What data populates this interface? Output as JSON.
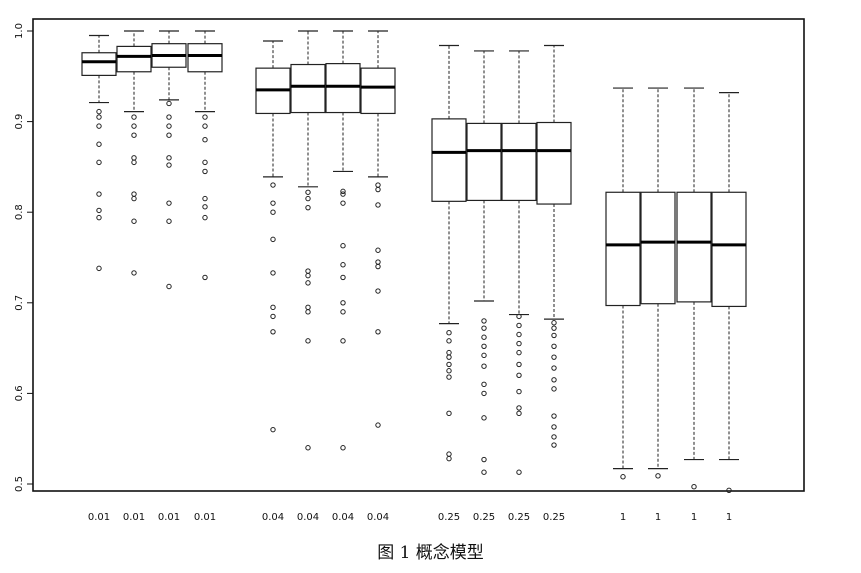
{
  "chart_data": {
    "type": "box",
    "title": "",
    "xlabel": "",
    "ylabel": "",
    "ylim": [
      0.5,
      1.0
    ],
    "yticks": [
      0.5,
      0.6,
      0.7,
      0.8,
      0.9,
      1.0
    ],
    "ytick_labels": [
      "0.5",
      "0.6",
      "0.7",
      "0.8",
      "0.9",
      "1.0"
    ],
    "grid": false,
    "categories": [
      "0.01",
      "0.01",
      "0.01",
      "0.01",
      "0.04",
      "0.04",
      "0.04",
      "0.04",
      "0.25",
      "0.25",
      "0.25",
      "0.25",
      "1",
      "1",
      "1",
      "1"
    ],
    "boxes": [
      {
        "whisker_low": 0.921,
        "q1": 0.951,
        "median": 0.966,
        "q3": 0.976,
        "whisker_high": 0.995,
        "outliers": [
          0.911,
          0.905,
          0.895,
          0.875,
          0.855,
          0.82,
          0.802,
          0.794,
          0.738
        ]
      },
      {
        "whisker_low": 0.911,
        "q1": 0.955,
        "median": 0.972,
        "q3": 0.983,
        "whisker_high": 1.0,
        "outliers": [
          0.905,
          0.895,
          0.885,
          0.86,
          0.855,
          0.82,
          0.815,
          0.79,
          0.733
        ]
      },
      {
        "whisker_low": 0.924,
        "q1": 0.96,
        "median": 0.973,
        "q3": 0.986,
        "whisker_high": 1.0,
        "outliers": [
          0.92,
          0.905,
          0.895,
          0.885,
          0.86,
          0.852,
          0.81,
          0.79,
          0.718
        ]
      },
      {
        "whisker_low": 0.911,
        "q1": 0.955,
        "median": 0.973,
        "q3": 0.986,
        "whisker_high": 1.0,
        "outliers": [
          0.905,
          0.895,
          0.88,
          0.855,
          0.845,
          0.815,
          0.806,
          0.794,
          0.728
        ]
      },
      {
        "whisker_low": 0.839,
        "q1": 0.909,
        "median": 0.935,
        "q3": 0.959,
        "whisker_high": 0.989,
        "outliers": [
          0.83,
          0.81,
          0.8,
          0.77,
          0.733,
          0.695,
          0.685,
          0.668,
          0.56
        ]
      },
      {
        "whisker_low": 0.828,
        "q1": 0.91,
        "median": 0.939,
        "q3": 0.963,
        "whisker_high": 1.0,
        "outliers": [
          0.822,
          0.815,
          0.805,
          0.735,
          0.73,
          0.722,
          0.695,
          0.69,
          0.658,
          0.54
        ]
      },
      {
        "whisker_low": 0.845,
        "q1": 0.91,
        "median": 0.939,
        "q3": 0.964,
        "whisker_high": 1.0,
        "outliers": [
          0.823,
          0.82,
          0.81,
          0.763,
          0.742,
          0.728,
          0.7,
          0.69,
          0.658,
          0.54
        ]
      },
      {
        "whisker_low": 0.839,
        "q1": 0.909,
        "median": 0.938,
        "q3": 0.959,
        "whisker_high": 1.0,
        "outliers": [
          0.83,
          0.825,
          0.808,
          0.758,
          0.745,
          0.74,
          0.713,
          0.668,
          0.565
        ]
      },
      {
        "whisker_low": 0.677,
        "q1": 0.812,
        "median": 0.866,
        "q3": 0.903,
        "whisker_high": 0.984,
        "outliers": [
          0.667,
          0.658,
          0.645,
          0.64,
          0.632,
          0.625,
          0.618,
          0.578,
          0.533,
          0.528
        ]
      },
      {
        "whisker_low": 0.702,
        "q1": 0.813,
        "median": 0.868,
        "q3": 0.898,
        "whisker_high": 0.978,
        "outliers": [
          0.68,
          0.672,
          0.662,
          0.652,
          0.642,
          0.63,
          0.61,
          0.6,
          0.573,
          0.527,
          0.513
        ]
      },
      {
        "whisker_low": 0.687,
        "q1": 0.813,
        "median": 0.868,
        "q3": 0.898,
        "whisker_high": 0.978,
        "outliers": [
          0.685,
          0.675,
          0.665,
          0.655,
          0.645,
          0.632,
          0.62,
          0.602,
          0.584,
          0.578,
          0.513
        ]
      },
      {
        "whisker_low": 0.682,
        "q1": 0.809,
        "median": 0.868,
        "q3": 0.899,
        "whisker_high": 0.984,
        "outliers": [
          0.678,
          0.672,
          0.664,
          0.652,
          0.64,
          0.628,
          0.615,
          0.605,
          0.575,
          0.563,
          0.552,
          0.543
        ]
      },
      {
        "whisker_low": 0.517,
        "q1": 0.697,
        "median": 0.764,
        "q3": 0.822,
        "whisker_high": 0.937,
        "outliers": [
          0.508
        ]
      },
      {
        "whisker_low": 0.517,
        "q1": 0.699,
        "median": 0.767,
        "q3": 0.822,
        "whisker_high": 0.937,
        "outliers": [
          0.509
        ]
      },
      {
        "whisker_low": 0.527,
        "q1": 0.701,
        "median": 0.767,
        "q3": 0.822,
        "whisker_high": 0.937,
        "outliers": [
          0.497
        ]
      },
      {
        "whisker_low": 0.527,
        "q1": 0.696,
        "median": 0.764,
        "q3": 0.822,
        "whisker_high": 0.932,
        "outliers": [
          0.493
        ]
      }
    ]
  },
  "caption": "图 1  概念模型"
}
